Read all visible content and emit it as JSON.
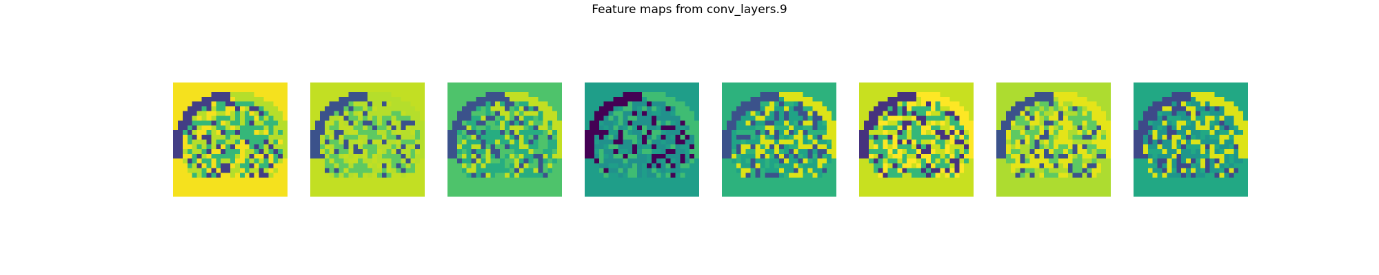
{
  "figure": {
    "title": "Feature maps from conv_layers.9"
  },
  "chart_data": {
    "type": "heatmap",
    "title": "Feature maps from conv_layers.9",
    "colormap": "viridis",
    "axes_visible": false,
    "grid": false,
    "panels": [
      {
        "index": 0,
        "background": "#f5e11e",
        "cold": "#433e85",
        "mid": "#35b779",
        "warm": "#b5de2b"
      },
      {
        "index": 1,
        "background": "#c2df23",
        "cold": "#3b528b",
        "mid": "#5ec962",
        "warm": "#b5de2b"
      },
      {
        "index": 2,
        "background": "#4ec36b",
        "cold": "#3b528b",
        "mid": "#27ad81",
        "warm": "#c2df23"
      },
      {
        "index": 3,
        "background": "#1f9e89",
        "cold": "#440154",
        "mid": "#21918c",
        "warm": "#3fbc73"
      },
      {
        "index": 4,
        "background": "#2db27d",
        "cold": "#3b528b",
        "mid": "#20a386",
        "warm": "#dde318"
      },
      {
        "index": 5,
        "background": "#c8e020",
        "cold": "#46327e",
        "mid": "#35b779",
        "warm": "#fde725"
      },
      {
        "index": 6,
        "background": "#addc30",
        "cold": "#3b528b",
        "mid": "#5ec962",
        "warm": "#e5e419"
      },
      {
        "index": 7,
        "background": "#22a884",
        "cold": "#3e4989",
        "mid": "#1f968b",
        "warm": "#dde318"
      }
    ]
  }
}
